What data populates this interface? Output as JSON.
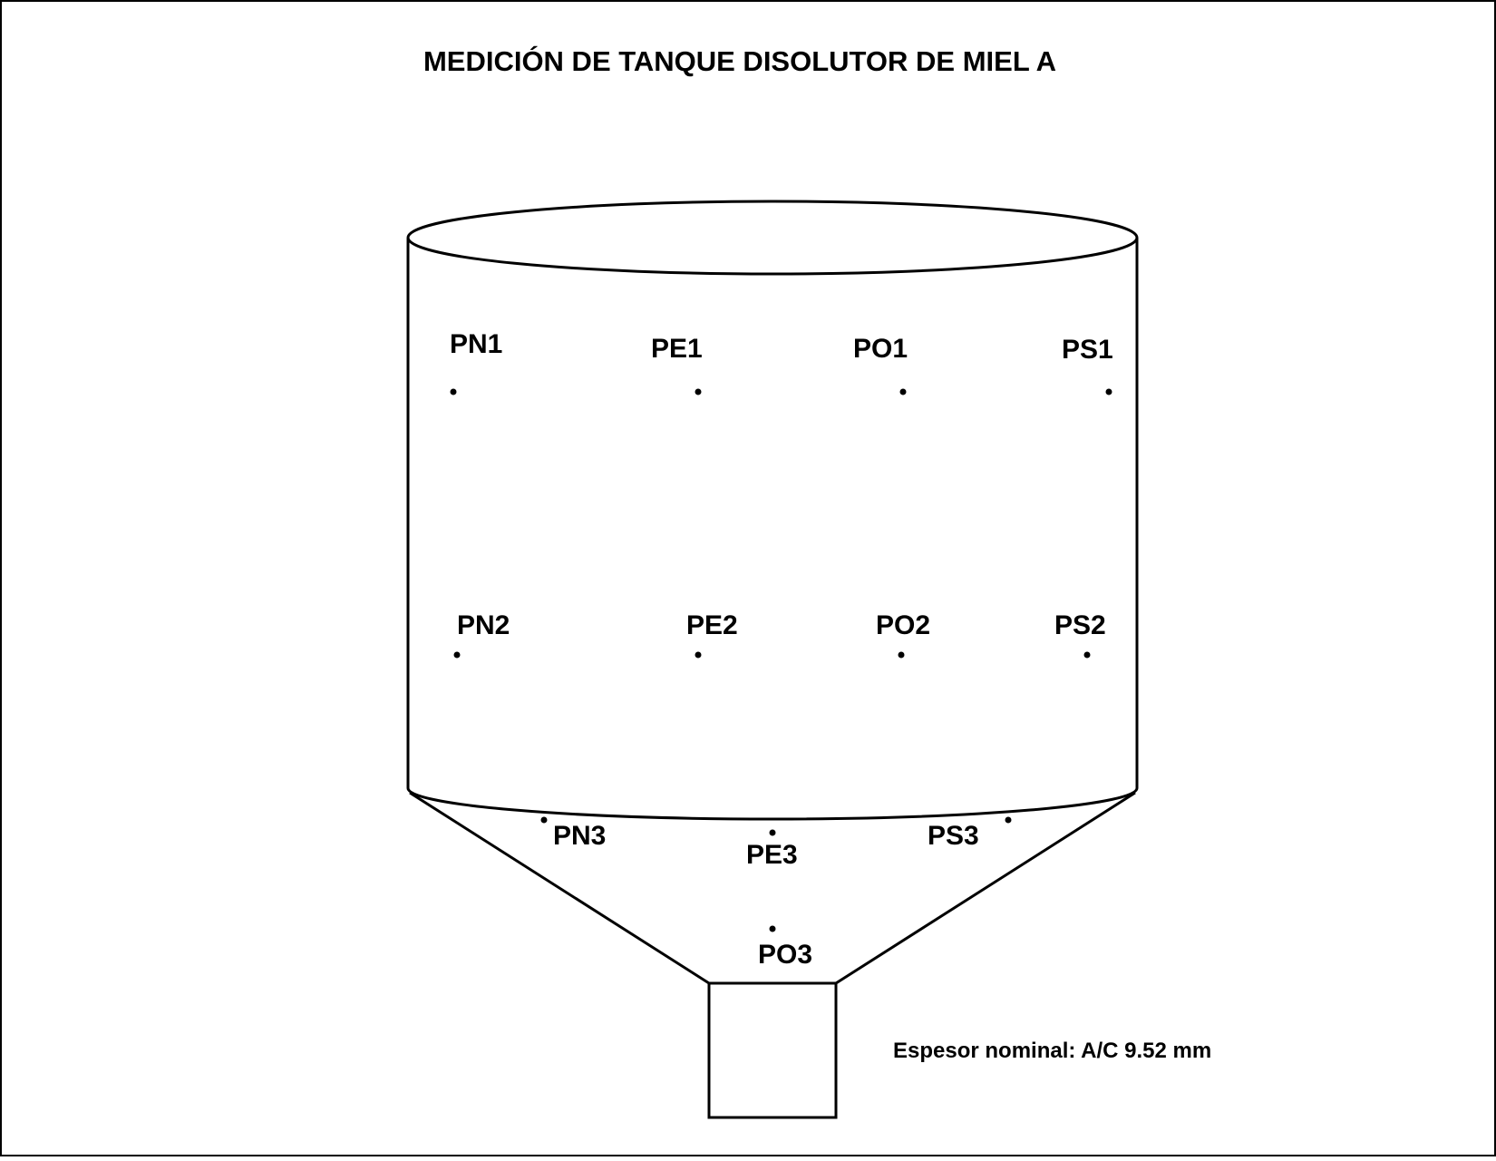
{
  "title": "MEDICIÓN DE TANQUE DISOLUTOR DE MIEL A",
  "note": "Espesor nominal: A/C 9.52 mm",
  "points": [
    {
      "id": "pn1",
      "label": "PN1"
    },
    {
      "id": "pe1",
      "label": "PE1"
    },
    {
      "id": "po1",
      "label": "PO1"
    },
    {
      "id": "ps1",
      "label": "PS1"
    },
    {
      "id": "pn2",
      "label": "PN2"
    },
    {
      "id": "pe2",
      "label": "PE2"
    },
    {
      "id": "po2",
      "label": "PO2"
    },
    {
      "id": "ps2",
      "label": "PS2"
    },
    {
      "id": "pn3",
      "label": "PN3"
    },
    {
      "id": "pe3",
      "label": "PE3"
    },
    {
      "id": "ps3",
      "label": "PS3"
    },
    {
      "id": "po3",
      "label": "PO3"
    }
  ]
}
